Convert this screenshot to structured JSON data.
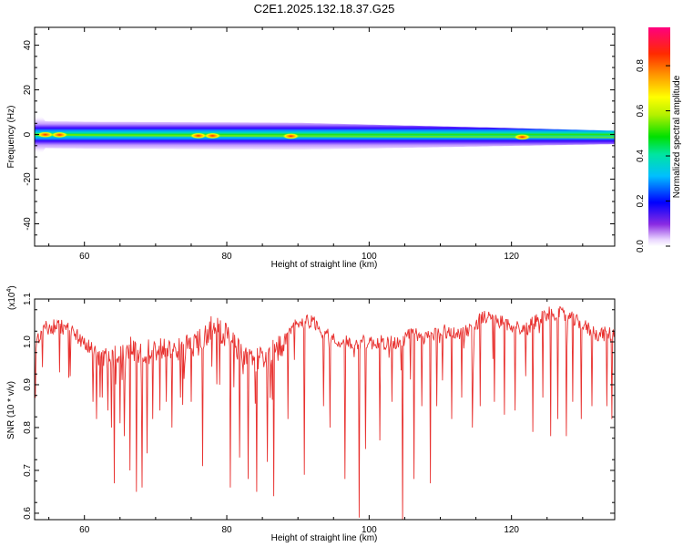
{
  "figure": {
    "title": "C2E1.2025.132.18.37.G25"
  },
  "chart_data": [
    {
      "type": "heatmap",
      "xlabel": "Height of straight line (km)",
      "ylabel": "Frequency (Hz)",
      "xlim": [
        53,
        134.5
      ],
      "ylim": [
        -50,
        48
      ],
      "xticks": [
        60,
        80,
        100,
        120
      ],
      "yticks": [
        -40,
        -20,
        0,
        20,
        40
      ],
      "colorbar": {
        "label": "Normalized spectral amplitude",
        "range": [
          0,
          0.97
        ],
        "ticks": [
          "0.0",
          "0.2",
          "0.4",
          "0.6",
          "0.8"
        ],
        "tick_values": [
          0,
          0.2,
          0.4,
          0.6,
          0.8
        ],
        "colormap": "rainbow (purple-blue-cyan-green-yellow-orange-red-magenta)"
      },
      "band": {
        "center_frequency_hz": [
          {
            "x": 53.0,
            "f": 0.0
          },
          {
            "x": 60.0,
            "f": -0.3
          },
          {
            "x": 80.0,
            "f": -0.6
          },
          {
            "x": 100.0,
            "f": -0.9
          },
          {
            "x": 120.0,
            "f": -1.1
          },
          {
            "x": 134.5,
            "f": -1.3
          }
        ],
        "width_profile": "widest (about ±6 Hz) near 55–90 km, narrowing to about ±3 Hz near 130 km",
        "hotspots_km": [
          54.5,
          56.5,
          76,
          78,
          89,
          121.5
        ]
      },
      "grid": false
    },
    {
      "type": "line",
      "xlabel": "Height of straight line (km)",
      "ylabel": "SNR (10 * v/v)",
      "ymultiplier": "(x10",
      "ymultiplier_exp": "4",
      "ymultiplier_close": ")",
      "xlim": [
        53,
        134.5
      ],
      "ylim": [
        0.585,
        1.1
      ],
      "xticks": [
        60,
        80,
        100,
        120
      ],
      "yticks": [
        "0.6",
        "0.7",
        "0.8",
        "0.9",
        "1.0",
        "1.1"
      ],
      "ytick_values": [
        0.6,
        0.7,
        0.8,
        0.9,
        1.0,
        1.1
      ],
      "series": [
        {
          "color": "#e8312f",
          "baseline": [
            {
              "x": 53.0,
              "y": 0.98
            },
            {
              "x": 54.0,
              "y": 1.03
            },
            {
              "x": 56.0,
              "y": 1.04
            },
            {
              "x": 58.0,
              "y": 1.03
            },
            {
              "x": 60.0,
              "y": 1.0
            },
            {
              "x": 62.0,
              "y": 0.97
            },
            {
              "x": 64.0,
              "y": 0.96
            },
            {
              "x": 66.0,
              "y": 0.99
            },
            {
              "x": 68.0,
              "y": 0.97
            },
            {
              "x": 70.0,
              "y": 0.99
            },
            {
              "x": 72.0,
              "y": 0.98
            },
            {
              "x": 74.0,
              "y": 0.99
            },
            {
              "x": 76.0,
              "y": 1.0
            },
            {
              "x": 78.0,
              "y": 1.04
            },
            {
              "x": 80.0,
              "y": 1.02
            },
            {
              "x": 82.0,
              "y": 0.98
            },
            {
              "x": 84.0,
              "y": 0.96
            },
            {
              "x": 86.0,
              "y": 0.97
            },
            {
              "x": 88.0,
              "y": 1.0
            },
            {
              "x": 90.0,
              "y": 1.05
            },
            {
              "x": 92.0,
              "y": 1.05
            },
            {
              "x": 94.0,
              "y": 1.02
            },
            {
              "x": 96.0,
              "y": 1.0
            },
            {
              "x": 98.0,
              "y": 1.0
            },
            {
              "x": 100.0,
              "y": 1.0
            },
            {
              "x": 102.0,
              "y": 1.0
            },
            {
              "x": 104.0,
              "y": 1.0
            },
            {
              "x": 106.0,
              "y": 1.02
            },
            {
              "x": 108.0,
              "y": 1.01
            },
            {
              "x": 110.0,
              "y": 1.03
            },
            {
              "x": 112.0,
              "y": 1.02
            },
            {
              "x": 114.0,
              "y": 1.03
            },
            {
              "x": 116.0,
              "y": 1.06
            },
            {
              "x": 118.0,
              "y": 1.05
            },
            {
              "x": 120.0,
              "y": 1.04
            },
            {
              "x": 122.0,
              "y": 1.03
            },
            {
              "x": 124.0,
              "y": 1.06
            },
            {
              "x": 126.0,
              "y": 1.07
            },
            {
              "x": 128.0,
              "y": 1.06
            },
            {
              "x": 130.0,
              "y": 1.04
            },
            {
              "x": 132.0,
              "y": 1.02
            },
            {
              "x": 134.5,
              "y": 1.02
            }
          ],
          "dips": [
            {
              "x": 61.2,
              "y": 0.86
            },
            {
              "x": 61.7,
              "y": 0.82
            },
            {
              "x": 62.5,
              "y": 0.87
            },
            {
              "x": 63.3,
              "y": 0.84
            },
            {
              "x": 63.8,
              "y": 0.8
            },
            {
              "x": 64.2,
              "y": 0.67
            },
            {
              "x": 65.0,
              "y": 0.81
            },
            {
              "x": 65.6,
              "y": 0.78
            },
            {
              "x": 66.4,
              "y": 0.7
            },
            {
              "x": 67.3,
              "y": 0.65
            },
            {
              "x": 68.1,
              "y": 0.66
            },
            {
              "x": 68.8,
              "y": 0.74
            },
            {
              "x": 69.6,
              "y": 0.82
            },
            {
              "x": 70.6,
              "y": 0.84
            },
            {
              "x": 71.5,
              "y": 0.86
            },
            {
              "x": 72.3,
              "y": 0.8
            },
            {
              "x": 73.5,
              "y": 0.87
            },
            {
              "x": 75.0,
              "y": 0.86
            },
            {
              "x": 76.6,
              "y": 0.71
            },
            {
              "x": 79.0,
              "y": 0.9
            },
            {
              "x": 80.5,
              "y": 0.66
            },
            {
              "x": 81.8,
              "y": 0.73
            },
            {
              "x": 83.0,
              "y": 0.68
            },
            {
              "x": 84.2,
              "y": 0.65
            },
            {
              "x": 85.7,
              "y": 0.72
            },
            {
              "x": 86.6,
              "y": 0.64
            },
            {
              "x": 88.6,
              "y": 0.82
            },
            {
              "x": 90.9,
              "y": 0.69
            },
            {
              "x": 93.6,
              "y": 0.85
            },
            {
              "x": 94.5,
              "y": 0.8
            },
            {
              "x": 96.6,
              "y": 0.68
            },
            {
              "x": 98.6,
              "y": 0.59
            },
            {
              "x": 99.5,
              "y": 0.75
            },
            {
              "x": 101.5,
              "y": 0.77
            },
            {
              "x": 103.2,
              "y": 0.86
            },
            {
              "x": 104.7,
              "y": 0.58
            },
            {
              "x": 106.3,
              "y": 0.68
            },
            {
              "x": 107.4,
              "y": 0.85
            },
            {
              "x": 108.6,
              "y": 0.67
            },
            {
              "x": 109.5,
              "y": 0.85
            },
            {
              "x": 110.3,
              "y": 0.91
            },
            {
              "x": 111.6,
              "y": 0.82
            },
            {
              "x": 113.0,
              "y": 0.87
            },
            {
              "x": 114.5,
              "y": 0.8
            },
            {
              "x": 115.6,
              "y": 0.85
            },
            {
              "x": 117.6,
              "y": 0.86
            },
            {
              "x": 119.0,
              "y": 0.83
            },
            {
              "x": 120.5,
              "y": 0.84
            },
            {
              "x": 122.0,
              "y": 0.92
            },
            {
              "x": 123.0,
              "y": 0.79
            },
            {
              "x": 124.4,
              "y": 0.87
            },
            {
              "x": 125.5,
              "y": 0.78
            },
            {
              "x": 126.5,
              "y": 0.82
            },
            {
              "x": 127.7,
              "y": 0.78
            },
            {
              "x": 128.6,
              "y": 0.86
            },
            {
              "x": 129.8,
              "y": 0.82
            },
            {
              "x": 131.3,
              "y": 0.85
            },
            {
              "x": 133.4,
              "y": 0.85
            },
            {
              "x": 134.1,
              "y": 0.82
            }
          ]
        }
      ],
      "grid": false
    }
  ]
}
